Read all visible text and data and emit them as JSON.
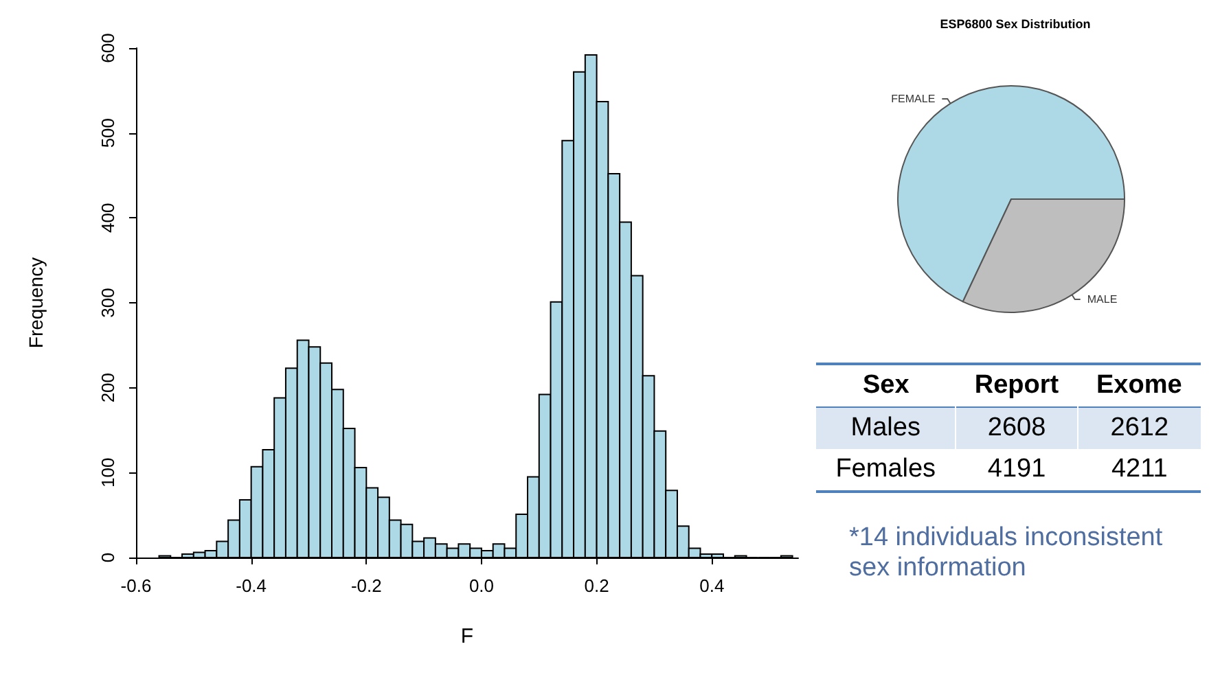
{
  "chart_data": [
    {
      "type": "histogram",
      "xlabel": "F",
      "ylabel": "Frequency",
      "color": "#add8e6",
      "bins": [
        -0.56,
        -0.54,
        -0.52,
        -0.5,
        -0.48,
        -0.46,
        -0.44,
        -0.42,
        -0.4,
        -0.38,
        -0.36,
        -0.34,
        -0.32,
        -0.3,
        -0.28,
        -0.26,
        -0.24,
        -0.22,
        -0.2,
        -0.18,
        -0.16,
        -0.14,
        -0.12,
        -0.1,
        -0.08,
        -0.06,
        -0.04,
        -0.02,
        0,
        0.02,
        0.04,
        0.06,
        0.08,
        0.1,
        0.12,
        0.14,
        0.16,
        0.18,
        0.2,
        0.22,
        0.24,
        0.26,
        0.28,
        0.3,
        0.32,
        0.34,
        0.36,
        0.38,
        0.4,
        0.42,
        0.44,
        0.46,
        0.48,
        0.5,
        0.52,
        0.54
      ],
      "values": [
        2,
        0,
        4,
        6,
        8,
        19,
        44,
        68,
        107,
        127,
        188,
        223,
        256,
        248,
        229,
        198,
        152,
        106,
        82,
        71,
        44,
        39,
        19,
        23,
        16,
        11,
        16,
        11,
        8,
        16,
        11,
        51,
        95,
        192,
        301,
        491,
        572,
        592,
        537,
        452,
        395,
        332,
        214,
        149,
        79,
        37,
        11,
        4,
        4,
        0,
        2,
        0,
        0,
        0,
        2
      ],
      "xlim": [
        -0.6,
        0.55
      ],
      "xticks": [
        -0.6,
        -0.4,
        -0.2,
        {
          "value": 0,
          "label": "0.0"
        },
        0.2,
        0.4
      ],
      "ylim": [
        0,
        600
      ],
      "yticks": [
        0,
        100,
        200,
        300,
        400,
        500,
        600
      ]
    },
    {
      "type": "pie",
      "title": "ESP6800 Sex Distribution",
      "categories": [
        "FEMALE",
        "MALE"
      ],
      "values": [
        68,
        32
      ],
      "colors": [
        "#add8e6",
        "#bebebe"
      ]
    },
    {
      "type": "heatmap",
      "ylabel": "Sex",
      "categories": [
        "Report",
        "Exome"
      ],
      "y_categories": [
        "Males",
        "Females"
      ],
      "cells": [
        [
          2608,
          2612
        ],
        [
          4191,
          4211
        ]
      ],
      "data_labels": true,
      "annotations": [
        "*14 individuals  inconsistent sex information"
      ]
    }
  ]
}
